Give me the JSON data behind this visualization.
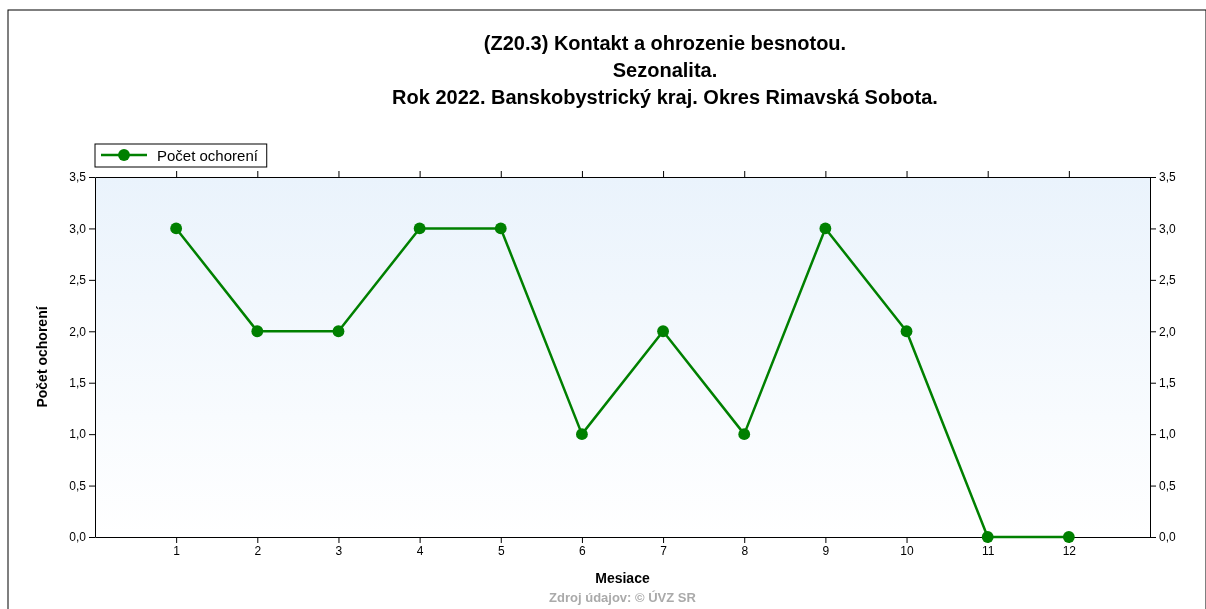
{
  "chart_data": {
    "type": "line",
    "title": "(Z20.3)  Kontakt a ohrozenie besnotou.",
    "subtitle": "Sezonalita.\nRok 2022. Banskobystrický kraj. Okres Rimavská Sobota.",
    "xlabel": "Mesiace",
    "ylabel": "Počet ochorení",
    "x": [
      1,
      2,
      3,
      4,
      5,
      6,
      7,
      8,
      9,
      10,
      11,
      12
    ],
    "series": [
      {
        "name": "Počet ochorení",
        "color": "#008000",
        "values": [
          3,
          2,
          2,
          3,
          3,
          1,
          2,
          1,
          3,
          2,
          0,
          0
        ]
      }
    ],
    "xlim": [
      0,
      13
    ],
    "xticks": [
      1,
      2,
      3,
      4,
      5,
      6,
      7,
      8,
      9,
      10,
      11,
      12
    ],
    "ylim": [
      0,
      3.5
    ],
    "yticks": [
      {
        "value": 0,
        "label": "0,0"
      },
      {
        "value": 0.5,
        "label": "0,5"
      },
      {
        "value": 1,
        "label": "1,0"
      },
      {
        "value": 1.5,
        "label": "1,5"
      },
      {
        "value": 2,
        "label": "2,0"
      },
      {
        "value": 2.5,
        "label": "2,5"
      },
      {
        "value": 3,
        "label": "3,0"
      },
      {
        "value": 3.5,
        "label": "3,5"
      }
    ],
    "y2lim": [
      0,
      3.5
    ],
    "y2ticks": [
      {
        "value": 0,
        "label": "0,0"
      },
      {
        "value": 0.5,
        "label": "0,5"
      },
      {
        "value": 1,
        "label": "1,0"
      },
      {
        "value": 1.5,
        "label": "1,5"
      },
      {
        "value": 2,
        "label": "2,0"
      },
      {
        "value": 2.5,
        "label": "2,5"
      },
      {
        "value": 3,
        "label": "3,0"
      },
      {
        "value": 3.5,
        "label": "3,5"
      }
    ],
    "grid": false,
    "legend": "top left",
    "marker": "circle",
    "line_style": "solid",
    "annotations": [
      "Zdroj údajov: © ÚVZ SR"
    ]
  }
}
